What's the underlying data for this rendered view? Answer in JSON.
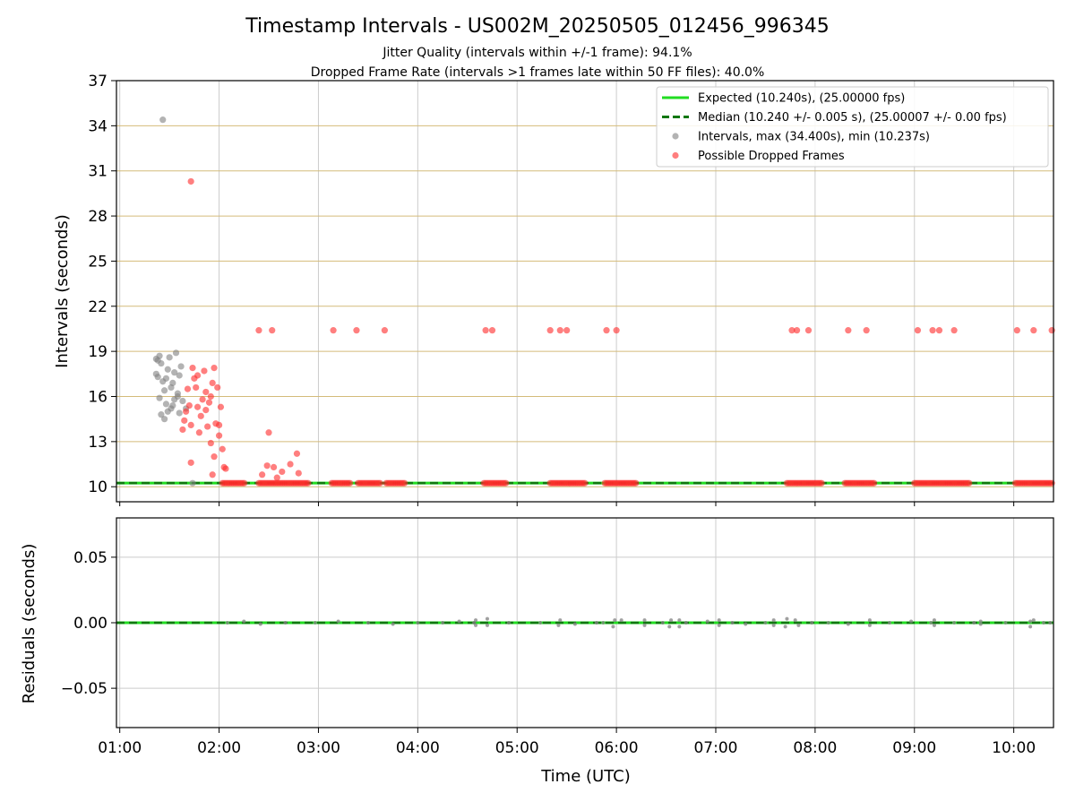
{
  "figure": {
    "title": "Timestamp Intervals - US002M_20250505_012456_996345",
    "subtitle_line1": "Jitter Quality (intervals within +/-1 frame): 94.1%",
    "subtitle_line2": "Dropped Frame Rate (intervals >1 frames late within 50 FF files): 40.0%"
  },
  "chart_data": [
    {
      "type": "scatter",
      "ylabel": "Intervals (seconds)",
      "xlim": [
        "00:58",
        "10:24"
      ],
      "ylim": [
        9.0,
        37.0
      ],
      "y_ticks": [
        10,
        13,
        16,
        19,
        22,
        25,
        28,
        31,
        34,
        37
      ],
      "grid": "on (x gray, y tan)",
      "legend_placement": "top-right",
      "colors": {
        "expected": "#22dd22",
        "median": "#117711",
        "intervals": "#808080",
        "dropped": "#ff2a2a",
        "ygrid": "#d4bb7a",
        "xgrid": "#cccccc"
      },
      "lines": [
        {
          "name": "Expected (10.240s), (25.00000 fps)",
          "y": 10.24,
          "style": "solid"
        },
        {
          "name": "Median (10.240 +/- 0.005 s), (25.00007 +/- 0.00 fps)",
          "y": 10.24,
          "style": "dashed"
        }
      ],
      "series": [
        {
          "name": "Intervals, max (34.400s), min (10.237s)",
          "points": [
            [
              "01:26",
              34.4
            ],
            [
              "01:22",
              17.5
            ],
            [
              "01:23",
              18.4
            ],
            [
              "01:24",
              18.7
            ],
            [
              "01:25",
              18.2
            ],
            [
              "01:26",
              17.0
            ],
            [
              "01:27",
              16.4
            ],
            [
              "01:28",
              15.5
            ],
            [
              "01:29",
              17.8
            ],
            [
              "01:30",
              18.6
            ],
            [
              "01:31",
              15.2
            ],
            [
              "01:32",
              16.9
            ],
            [
              "01:33",
              17.6
            ],
            [
              "01:34",
              18.9
            ],
            [
              "01:35",
              16.0
            ],
            [
              "01:36",
              14.9
            ],
            [
              "01:37",
              18.0
            ],
            [
              "01:38",
              15.7
            ],
            [
              "01:24",
              15.9
            ],
            [
              "01:25",
              14.8
            ],
            [
              "01:27",
              14.5
            ],
            [
              "01:29",
              15.0
            ],
            [
              "01:32",
              15.4
            ],
            [
              "01:35",
              16.2
            ],
            [
              "01:22",
              18.5
            ],
            [
              "01:23",
              17.3
            ],
            [
              "01:28",
              17.2
            ],
            [
              "01:31",
              16.6
            ],
            [
              "01:33",
              15.8
            ],
            [
              "01:36",
              17.4
            ],
            [
              "01:40",
              15.2
            ],
            [
              "01:44",
              10.24
            ]
          ]
        },
        {
          "name": "Possible Dropped Frames",
          "points": [
            [
              "01:43",
              30.3
            ],
            [
              "01:38",
              13.8
            ],
            [
              "01:39",
              14.4
            ],
            [
              "01:40",
              15.0
            ],
            [
              "01:41",
              16.5
            ],
            [
              "01:42",
              15.4
            ],
            [
              "01:43",
              14.1
            ],
            [
              "01:44",
              17.9
            ],
            [
              "01:45",
              17.2
            ],
            [
              "01:46",
              16.6
            ],
            [
              "01:47",
              15.3
            ],
            [
              "01:48",
              13.6
            ],
            [
              "01:49",
              14.7
            ],
            [
              "01:50",
              15.8
            ],
            [
              "01:51",
              17.7
            ],
            [
              "01:52",
              16.3
            ],
            [
              "01:53",
              14.0
            ],
            [
              "01:54",
              15.6
            ],
            [
              "01:55",
              12.9
            ],
            [
              "01:56",
              16.9
            ],
            [
              "01:57",
              17.9
            ],
            [
              "01:58",
              14.2
            ],
            [
              "01:59",
              16.6
            ],
            [
              "02:00",
              13.4
            ],
            [
              "02:01",
              15.3
            ],
            [
              "02:02",
              12.5
            ],
            [
              "02:03",
              11.3
            ],
            [
              "02:04",
              11.2
            ],
            [
              "01:56",
              10.8
            ],
            [
              "01:57",
              12.0
            ],
            [
              "01:43",
              11.6
            ],
            [
              "01:47",
              17.4
            ],
            [
              "01:52",
              15.1
            ],
            [
              "01:55",
              16.0
            ],
            [
              "02:00",
              14.1
            ],
            [
              "02:30",
              13.6
            ],
            [
              "02:29",
              11.4
            ],
            [
              "02:33",
              11.3
            ],
            [
              "02:35",
              10.6
            ],
            [
              "02:43",
              11.5
            ],
            [
              "02:47",
              12.2
            ],
            [
              "02:48",
              10.9
            ],
            [
              "02:26",
              10.8
            ],
            [
              "02:38",
              11.0
            ],
            [
              "02:24",
              20.4
            ],
            [
              "02:32",
              20.4
            ],
            [
              "03:09",
              20.4
            ],
            [
              "03:23",
              20.4
            ],
            [
              "03:40",
              20.4
            ],
            [
              "04:41",
              20.4
            ],
            [
              "04:45",
              20.4
            ],
            [
              "05:20",
              20.4
            ],
            [
              "05:26",
              20.4
            ],
            [
              "05:30",
              20.4
            ],
            [
              "05:54",
              20.4
            ],
            [
              "06:00",
              20.4
            ],
            [
              "07:46",
              20.4
            ],
            [
              "07:49",
              20.4
            ],
            [
              "07:56",
              20.4
            ],
            [
              "08:20",
              20.4
            ],
            [
              "08:31",
              20.4
            ],
            [
              "09:02",
              20.4
            ],
            [
              "09:11",
              20.4
            ],
            [
              "09:15",
              20.4
            ],
            [
              "09:24",
              20.4
            ],
            [
              "10:02",
              20.4
            ],
            [
              "10:12",
              20.4
            ],
            [
              "10:23",
              20.4
            ]
          ],
          "baseline_runs_y": 10.24,
          "baseline_runs": [
            [
              "02:02",
              "02:16"
            ],
            [
              "02:24",
              "02:54"
            ],
            [
              "03:08",
              "03:20"
            ],
            [
              "03:24",
              "03:38"
            ],
            [
              "03:41",
              "03:52"
            ],
            [
              "04:40",
              "04:54"
            ],
            [
              "05:20",
              "05:42"
            ],
            [
              "05:53",
              "06:12"
            ],
            [
              "07:43",
              "08:05"
            ],
            [
              "08:18",
              "08:36"
            ],
            [
              "09:00",
              "09:34"
            ],
            [
              "10:01",
              "10:24"
            ]
          ]
        }
      ]
    },
    {
      "type": "scatter",
      "xlabel": "Time (UTC)",
      "ylabel": "Residuals (seconds)",
      "xlim": [
        "00:58",
        "10:24"
      ],
      "ylim": [
        -0.08,
        0.08
      ],
      "y_ticks": [
        -0.05,
        0.0,
        0.05
      ],
      "y_tick_labels": [
        "−0.05",
        "0.00",
        "0.05"
      ],
      "x_ticks": [
        "01:00",
        "02:00",
        "03:00",
        "04:00",
        "05:00",
        "06:00",
        "07:00",
        "08:00",
        "09:00",
        "10:00"
      ],
      "grid": "on (gray)",
      "lines": [
        {
          "name": "Expected",
          "y": 0.0
        },
        {
          "name": "Median",
          "y": 0.0
        }
      ],
      "series": [
        {
          "name": "Residuals",
          "points": [
            [
              "02:05",
              0.0
            ],
            [
              "02:15",
              0.001
            ],
            [
              "02:25",
              -0.001
            ],
            [
              "02:40",
              0.0
            ],
            [
              "02:58",
              0.0
            ],
            [
              "03:12",
              0.001
            ],
            [
              "03:30",
              0.0
            ],
            [
              "03:45",
              -0.001
            ],
            [
              "04:00",
              0.0
            ],
            [
              "04:15",
              0.0
            ],
            [
              "04:25",
              0.001
            ],
            [
              "04:34",
              0.0
            ],
            [
              "04:35",
              -0.002
            ],
            [
              "04:35",
              0.002
            ],
            [
              "04:42",
              0.003
            ],
            [
              "04:42",
              -0.002
            ],
            [
              "04:55",
              0.0
            ],
            [
              "05:14",
              0.0
            ],
            [
              "05:25",
              -0.002
            ],
            [
              "05:26",
              0.002
            ],
            [
              "05:35",
              -0.001
            ],
            [
              "05:48",
              0.0
            ],
            [
              "05:52",
              0.0
            ],
            [
              "05:58",
              -0.003
            ],
            [
              "05:59",
              0.002
            ],
            [
              "06:03",
              0.002
            ],
            [
              "06:17",
              -0.002
            ],
            [
              "06:17",
              0.002
            ],
            [
              "06:28",
              0.0
            ],
            [
              "06:32",
              -0.003
            ],
            [
              "06:33",
              0.002
            ],
            [
              "06:38",
              0.002
            ],
            [
              "06:38",
              -0.003
            ],
            [
              "06:42",
              0.0
            ],
            [
              "06:55",
              0.001
            ],
            [
              "07:02",
              -0.002
            ],
            [
              "07:02",
              0.002
            ],
            [
              "07:10",
              0.0
            ],
            [
              "07:18",
              -0.001
            ],
            [
              "07:30",
              0.0
            ],
            [
              "07:35",
              0.002
            ],
            [
              "07:35",
              -0.002
            ],
            [
              "07:42",
              -0.003
            ],
            [
              "07:43",
              0.003
            ],
            [
              "07:48",
              0.002
            ],
            [
              "07:50",
              -0.002
            ],
            [
              "07:58",
              0.0
            ],
            [
              "08:08",
              0.0
            ],
            [
              "08:20",
              -0.001
            ],
            [
              "08:33",
              0.002
            ],
            [
              "08:33",
              -0.002
            ],
            [
              "08:45",
              0.0
            ],
            [
              "08:58",
              0.001
            ],
            [
              "09:10",
              0.0
            ],
            [
              "09:12",
              0.002
            ],
            [
              "09:12",
              -0.002
            ],
            [
              "09:24",
              0.0
            ],
            [
              "09:36",
              0.0
            ],
            [
              "09:40",
              0.001
            ],
            [
              "09:40",
              -0.001
            ],
            [
              "09:55",
              0.0
            ],
            [
              "10:10",
              0.001
            ],
            [
              "10:10",
              -0.003
            ],
            [
              "10:12",
              0.002
            ],
            [
              "10:18",
              0.0
            ],
            [
              "10:22",
              0.0
            ]
          ]
        }
      ]
    }
  ],
  "legend": {
    "items": [
      {
        "label": "Expected (10.240s), (25.00000 fps)",
        "kind": "line-solid",
        "color": "#22dd22"
      },
      {
        "label": "Median (10.240 +/- 0.005 s), (25.00007 +/- 0.00 fps)",
        "kind": "line-dashed",
        "color": "#117711"
      },
      {
        "label": "Intervals, max (34.400s), min (10.237s)",
        "kind": "point",
        "color": "#808080"
      },
      {
        "label": "Possible Dropped Frames",
        "kind": "point",
        "color": "#ff2a2a"
      }
    ]
  }
}
